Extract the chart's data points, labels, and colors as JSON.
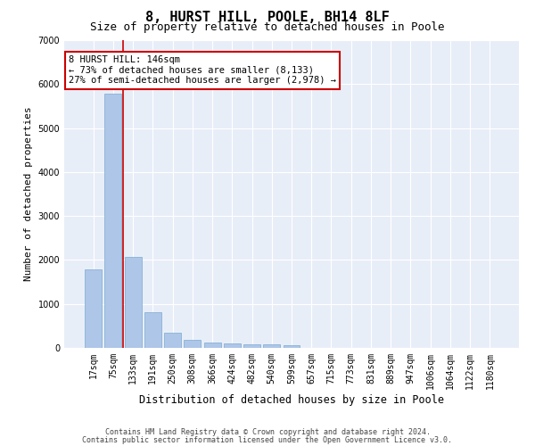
{
  "title1": "8, HURST HILL, POOLE, BH14 8LF",
  "title2": "Size of property relative to detached houses in Poole",
  "xlabel": "Distribution of detached houses by size in Poole",
  "ylabel": "Number of detached properties",
  "bar_color": "#aec6e8",
  "bar_edge_color": "#7aaad0",
  "highlight_line_color": "#cc0000",
  "annotation_text": "8 HURST HILL: 146sqm\n← 73% of detached houses are smaller (8,133)\n27% of semi-detached houses are larger (2,978) →",
  "annotation_box_color": "#cc0000",
  "categories": [
    "17sqm",
    "75sqm",
    "133sqm",
    "191sqm",
    "250sqm",
    "308sqm",
    "366sqm",
    "424sqm",
    "482sqm",
    "540sqm",
    "599sqm",
    "657sqm",
    "715sqm",
    "773sqm",
    "831sqm",
    "889sqm",
    "947sqm",
    "1006sqm",
    "1064sqm",
    "1122sqm",
    "1180sqm"
  ],
  "values": [
    1780,
    5780,
    2060,
    820,
    340,
    185,
    120,
    100,
    85,
    75,
    65,
    0,
    0,
    0,
    0,
    0,
    0,
    0,
    0,
    0,
    0
  ],
  "ylim": [
    0,
    7000
  ],
  "yticks": [
    0,
    1000,
    2000,
    3000,
    4000,
    5000,
    6000,
    7000
  ],
  "background_color": "#e8eef8",
  "footer1": "Contains HM Land Registry data © Crown copyright and database right 2024.",
  "footer2": "Contains public sector information licensed under the Open Government Licence v3.0.",
  "title1_fontsize": 11,
  "title2_fontsize": 9,
  "xlabel_fontsize": 8.5,
  "ylabel_fontsize": 8,
  "tick_fontsize": 7,
  "annotation_fontsize": 7.5,
  "footer_fontsize": 6
}
